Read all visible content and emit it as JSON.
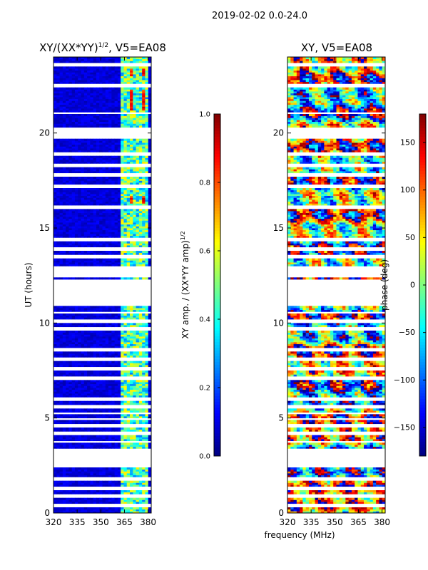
{
  "figure_title": "2019-02-02 0.0-24.0",
  "shared_xlabel": "frequency (MHz)",
  "colors": {
    "jet": [
      "#00007f",
      "#0000ff",
      "#007fff",
      "#00ffff",
      "#7fff7f",
      "#ffff00",
      "#ff7f00",
      "#ff0000",
      "#7f0000"
    ],
    "axis": "#000000",
    "gap": "#ffffff"
  },
  "chart_data": [
    {
      "type": "heatmap",
      "title_base": "XY/(XX*YY)",
      "title_exp": "1/2",
      "title_suffix": ", V5=EA08",
      "xlabel": "frequency (MHz)",
      "ylabel": "UT (hours)",
      "xlim": [
        320,
        382
      ],
      "ylim": [
        0,
        24
      ],
      "xticks": [
        320,
        335,
        350,
        365,
        380
      ],
      "yticks": [
        0,
        5,
        10,
        15,
        20
      ],
      "grid": false,
      "colorbar": {
        "label_base": "XY amp. / (XX*YY amp)",
        "label_exp": "1/2",
        "range": [
          0.0,
          1.0
        ],
        "ticks": [
          "0.0",
          "0.2",
          "0.4",
          "0.6",
          "0.8",
          "1.0"
        ],
        "tick_values": [
          0.0,
          0.2,
          0.4,
          0.6,
          0.8,
          1.0
        ]
      },
      "description_fields": {
        "background_level": 0.05,
        "active_band_mhz": [
          362,
          381
        ],
        "active_band_level": 0.45,
        "bright_episodes_hours": [
          [
            21.2,
            22.3
          ],
          [
            16.3,
            16.7
          ],
          [
            23.0,
            23.4
          ]
        ],
        "bright_level": 0.85
      }
    },
    {
      "type": "heatmap",
      "title": "XY, V5=EA08",
      "xlim": [
        320,
        382
      ],
      "ylim": [
        0,
        24
      ],
      "xticks": [
        320,
        335,
        350,
        365,
        380
      ],
      "yticks": [
        0,
        5,
        10,
        15,
        20
      ],
      "grid": false,
      "colorbar": {
        "label": "phase (deg)",
        "range": [
          -180,
          180
        ],
        "ticks": [
          "−150",
          "−100",
          "−50",
          "0",
          "50",
          "100",
          "150"
        ],
        "tick_values": [
          -150,
          -100,
          -50,
          0,
          50,
          100,
          150
        ]
      }
    }
  ],
  "data_gaps_hours": [
    [
      2.4,
      3.4
    ],
    [
      3.7,
      3.8
    ],
    [
      4.9,
      5.0
    ],
    [
      5.2,
      5.3
    ],
    [
      9.6,
      9.8
    ],
    [
      10.05,
      10.2
    ],
    [
      10.5,
      10.6
    ],
    [
      10.95,
      12.3
    ],
    [
      12.4,
      13.0
    ],
    [
      19.7,
      20.3
    ],
    [
      21.0,
      21.1
    ]
  ],
  "thin_gaps_hours": [
    0.4,
    0.9,
    1.3,
    1.8,
    4.2,
    4.6,
    5.6,
    6.0,
    7.1,
    7.6,
    8.1,
    8.6,
    13.5,
    13.9,
    14.4,
    16.1,
    17.2,
    17.8,
    18.3,
    18.9,
    22.5,
    23.6
  ]
}
